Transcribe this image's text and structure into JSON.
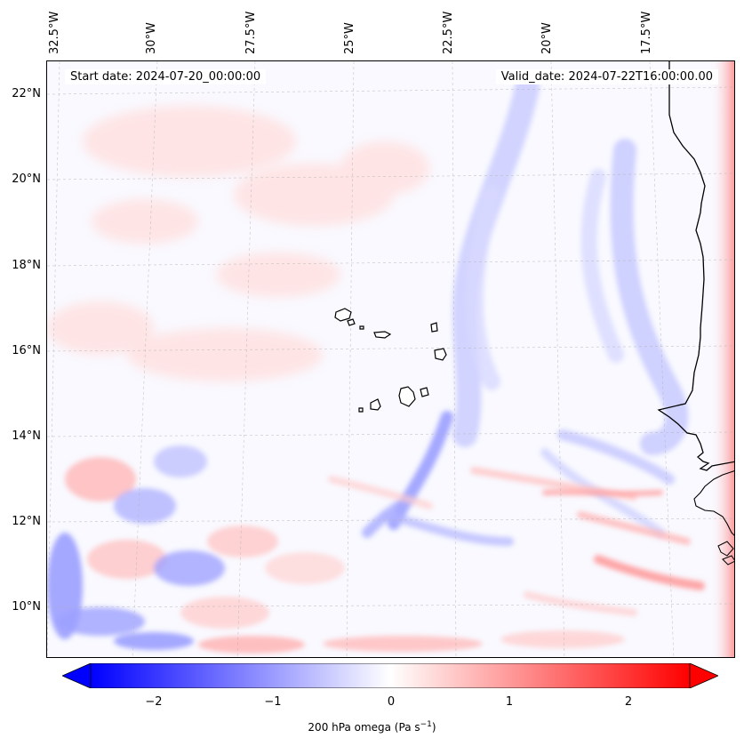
{
  "map": {
    "start_date": "Start date: 2024-07-20_00:00:00",
    "valid_date": "Valid_date: 2024-07-22T16:00:00.00",
    "lon_labels": [
      "32.5°W",
      "30°W",
      "27.5°W",
      "25°W",
      "22.5°W",
      "20°W",
      "17.5°W"
    ],
    "lat_labels": [
      "22°N",
      "20°N",
      "18°N",
      "16°N",
      "14°N",
      "12°N",
      "10°N"
    ],
    "field": "200 hPa omega",
    "colormap": "bwr",
    "colors": {
      "negative": "#0000ff",
      "zero": "#ffffff",
      "positive": "#ff0000",
      "coastline": "#000000"
    }
  },
  "colorbar": {
    "ticks": [
      "−2",
      "−1",
      "0",
      "1",
      "2"
    ],
    "range": [
      -2.75,
      2.75
    ],
    "label_main": "200 hPa omega (Pa s",
    "label_sup": "−1",
    "label_end": ")"
  }
}
